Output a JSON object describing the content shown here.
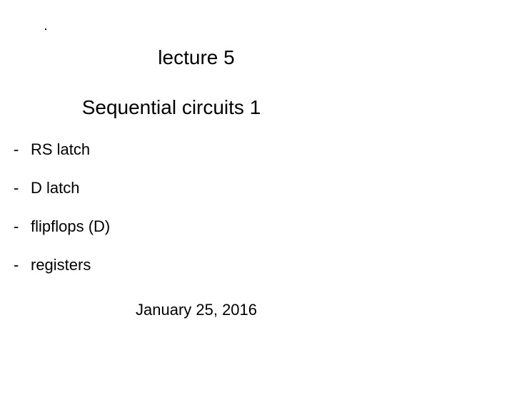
{
  "title": "lecture 5",
  "subtitle": "Sequential circuits 1",
  "bullets": {
    "dash": "-",
    "item0": "RS latch",
    "item1": "D latch",
    "item2": "flipflops  (D)",
    "item3": "registers"
  },
  "date": "January 25,  2016"
}
